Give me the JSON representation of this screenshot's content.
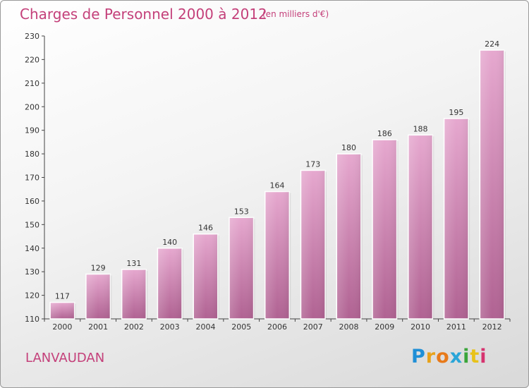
{
  "title": "Charges de Personnel 2000 à 2012",
  "subtitle": "(en milliers d'€)",
  "commune": "LANVAUDAN",
  "logo": {
    "letters": [
      "P",
      "r",
      "o",
      "x",
      "i",
      "t",
      "i"
    ],
    "colors": [
      "#1f8fd6",
      "#e8a21a",
      "#e87a1a",
      "#2aa5d8",
      "#3aa53a",
      "#e8c21a",
      "#d6336f"
    ]
  },
  "colors": {
    "bar": "#cc7aa8",
    "text_accent": "#c4407a"
  },
  "chart_data": {
    "type": "bar",
    "title": "Charges de Personnel 2000 à 2012",
    "subtitle": "(en milliers d'€)",
    "categories": [
      "2000",
      "2001",
      "2002",
      "2003",
      "2004",
      "2005",
      "2006",
      "2007",
      "2008",
      "2009",
      "2010",
      "2011",
      "2012"
    ],
    "values": [
      117,
      129,
      131,
      140,
      146,
      153,
      164,
      173,
      180,
      186,
      188,
      195,
      224
    ],
    "ylim": [
      110,
      230
    ],
    "yticks": [
      110,
      120,
      130,
      140,
      150,
      160,
      170,
      180,
      190,
      200,
      210,
      220,
      230
    ],
    "grid": false,
    "legend": "none"
  }
}
